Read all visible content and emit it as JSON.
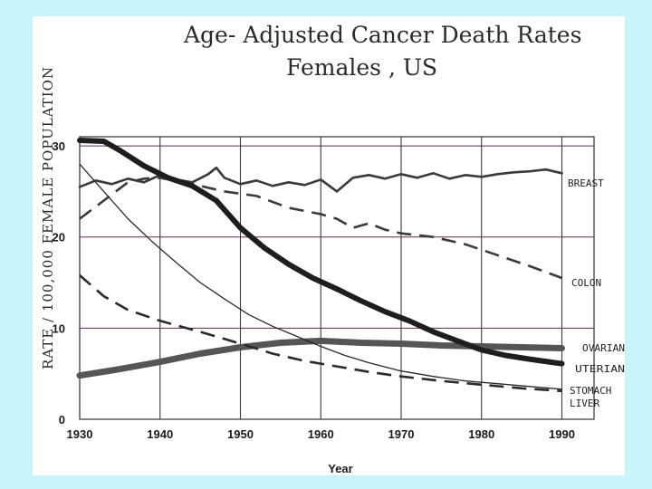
{
  "chart_data": {
    "type": "line",
    "title_line1": "Age- Adjusted Cancer Death Rates",
    "title_line2": "Females , US",
    "xlabel": "Year",
    "ylabel": "RATE / 100,000 FEMALE POPULATION",
    "xlim": [
      1930,
      1994
    ],
    "ylim": [
      0,
      31
    ],
    "x_ticks": [
      1930,
      1940,
      1950,
      1960,
      1970,
      1980,
      1990
    ],
    "y_ticks": [
      0,
      10,
      20,
      30
    ],
    "grid": true,
    "series": [
      {
        "name": "BREAST",
        "color": "#3a3a3a",
        "style": "solid",
        "weight": "medium",
        "points": [
          [
            1930,
            25.5
          ],
          [
            1932,
            26.2
          ],
          [
            1934,
            25.8
          ],
          [
            1936,
            26.4
          ],
          [
            1938,
            26.0
          ],
          [
            1940,
            26.8
          ],
          [
            1942,
            26.3
          ],
          [
            1944,
            26.0
          ],
          [
            1946,
            26.9
          ],
          [
            1947,
            27.6
          ],
          [
            1948,
            26.5
          ],
          [
            1950,
            25.8
          ],
          [
            1952,
            26.2
          ],
          [
            1954,
            25.6
          ],
          [
            1956,
            26.0
          ],
          [
            1958,
            25.7
          ],
          [
            1960,
            26.3
          ],
          [
            1962,
            25.0
          ],
          [
            1964,
            26.5
          ],
          [
            1966,
            26.8
          ],
          [
            1968,
            26.4
          ],
          [
            1970,
            26.9
          ],
          [
            1972,
            26.5
          ],
          [
            1974,
            27.0
          ],
          [
            1976,
            26.4
          ],
          [
            1978,
            26.8
          ],
          [
            1980,
            26.6
          ],
          [
            1982,
            26.9
          ],
          [
            1984,
            27.1
          ],
          [
            1986,
            27.2
          ],
          [
            1988,
            27.4
          ],
          [
            1990,
            27.0
          ]
        ]
      },
      {
        "name": "COLON",
        "color": "#3a3a3a",
        "style": "dashed",
        "weight": "medium",
        "points": [
          [
            1930,
            22.0
          ],
          [
            1933,
            24.0
          ],
          [
            1936,
            26.0
          ],
          [
            1938,
            26.4
          ],
          [
            1940,
            26.5
          ],
          [
            1944,
            25.8
          ],
          [
            1948,
            25.0
          ],
          [
            1952,
            24.5
          ],
          [
            1956,
            23.2
          ],
          [
            1960,
            22.5
          ],
          [
            1962,
            22.0
          ],
          [
            1964,
            21.0
          ],
          [
            1966,
            21.5
          ],
          [
            1968,
            20.8
          ],
          [
            1970,
            20.4
          ],
          [
            1974,
            20.0
          ],
          [
            1978,
            19.2
          ],
          [
            1982,
            18.0
          ],
          [
            1986,
            16.8
          ],
          [
            1990,
            15.5
          ]
        ]
      },
      {
        "name": "OVARIAN",
        "color": "#555555",
        "style": "solid",
        "weight": "thick",
        "points": [
          [
            1930,
            4.8
          ],
          [
            1935,
            5.5
          ],
          [
            1940,
            6.3
          ],
          [
            1945,
            7.2
          ],
          [
            1950,
            7.9
          ],
          [
            1955,
            8.4
          ],
          [
            1960,
            8.6
          ],
          [
            1965,
            8.4
          ],
          [
            1970,
            8.3
          ],
          [
            1975,
            8.1
          ],
          [
            1980,
            8.0
          ],
          [
            1985,
            7.9
          ],
          [
            1990,
            7.8
          ]
        ]
      },
      {
        "name": "UTERIAN",
        "color": "#1e1e1e",
        "style": "solid",
        "weight": "heavy",
        "points": [
          [
            1930,
            30.6
          ],
          [
            1933,
            30.5
          ],
          [
            1935,
            29.5
          ],
          [
            1938,
            27.8
          ],
          [
            1941,
            26.5
          ],
          [
            1944,
            25.6
          ],
          [
            1947,
            24.0
          ],
          [
            1950,
            21.0
          ],
          [
            1953,
            18.8
          ],
          [
            1956,
            17.0
          ],
          [
            1959,
            15.5
          ],
          [
            1962,
            14.3
          ],
          [
            1965,
            13.0
          ],
          [
            1968,
            11.8
          ],
          [
            1971,
            10.8
          ],
          [
            1974,
            9.6
          ],
          [
            1977,
            8.6
          ],
          [
            1980,
            7.6
          ],
          [
            1983,
            7.0
          ],
          [
            1986,
            6.6
          ],
          [
            1990,
            6.1
          ]
        ]
      },
      {
        "name": "STOMACH",
        "color": "#2a2a2a",
        "style": "solid",
        "weight": "thin",
        "points": [
          [
            1930,
            28.0
          ],
          [
            1933,
            25.0
          ],
          [
            1936,
            22.0
          ],
          [
            1939,
            19.5
          ],
          [
            1942,
            17.2
          ],
          [
            1945,
            15.0
          ],
          [
            1948,
            13.2
          ],
          [
            1951,
            11.5
          ],
          [
            1954,
            10.2
          ],
          [
            1957,
            9.1
          ],
          [
            1960,
            8.0
          ],
          [
            1963,
            7.0
          ],
          [
            1966,
            6.2
          ],
          [
            1970,
            5.3
          ],
          [
            1974,
            4.7
          ],
          [
            1978,
            4.2
          ],
          [
            1982,
            3.9
          ],
          [
            1986,
            3.6
          ],
          [
            1990,
            3.3
          ]
        ]
      },
      {
        "name": "LIVER",
        "color": "#2a2a2a",
        "style": "dashed",
        "weight": "medium",
        "points": [
          [
            1930,
            15.8
          ],
          [
            1933,
            13.5
          ],
          [
            1936,
            12.0
          ],
          [
            1940,
            10.8
          ],
          [
            1945,
            9.6
          ],
          [
            1950,
            8.3
          ],
          [
            1954,
            7.2
          ],
          [
            1958,
            6.4
          ],
          [
            1962,
            5.8
          ],
          [
            1966,
            5.2
          ],
          [
            1970,
            4.7
          ],
          [
            1975,
            4.2
          ],
          [
            1980,
            3.8
          ],
          [
            1985,
            3.4
          ],
          [
            1990,
            3.1
          ]
        ]
      }
    ],
    "labels": {
      "breast": "BREAST",
      "colon": "COLON",
      "ovarian": "OVARIAN",
      "uterian": "UTERIAN",
      "stomach": "STOMACH",
      "liver": "LIVER"
    }
  }
}
